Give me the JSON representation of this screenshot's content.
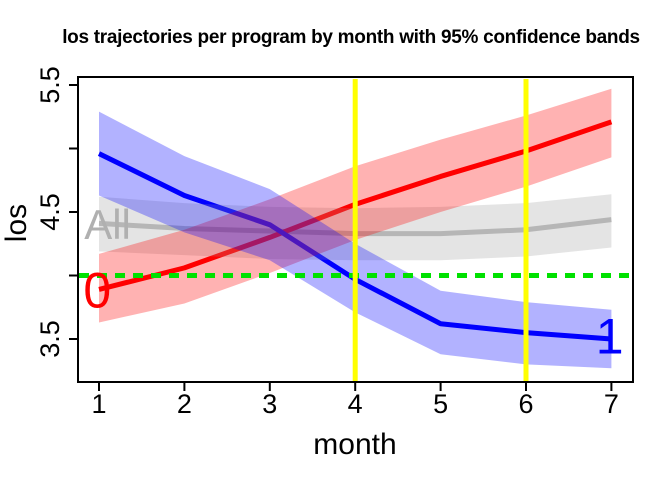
{
  "title": "los trajectories per program by month with 95% confidence bands",
  "chart_data": {
    "type": "line",
    "title": "los trajectories per program by month with 95% confidence bands",
    "xlabel": "month",
    "ylabel": "los",
    "x": [
      1,
      2,
      3,
      4,
      5,
      6,
      7
    ],
    "xlim": [
      0.76,
      7.25
    ],
    "ylim": [
      3.16,
      5.56
    ],
    "xticks": [
      {
        "value": 1,
        "label": "1"
      },
      {
        "value": 2,
        "label": "2"
      },
      {
        "value": 3,
        "label": "3"
      },
      {
        "value": 4,
        "label": "4"
      },
      {
        "value": 5,
        "label": "5"
      },
      {
        "value": 6,
        "label": "6"
      },
      {
        "value": 7,
        "label": "7"
      }
    ],
    "yticks": [
      {
        "value": 3.5,
        "label": "3.5"
      },
      {
        "value": 4.0,
        "label": ""
      },
      {
        "value": 4.5,
        "label": "4.5"
      },
      {
        "value": 5.0,
        "label": ""
      },
      {
        "value": 5.5,
        "label": "5.5"
      }
    ],
    "grid": false,
    "legend": "none",
    "series": [
      {
        "name": "program-0",
        "label": "0",
        "color": "#FF0000",
        "band_color": "rgba(255,0,0,0.30)",
        "values": [
          3.89,
          4.06,
          4.3,
          4.56,
          4.78,
          4.98,
          5.21
        ],
        "upper": [
          4.17,
          4.36,
          4.6,
          4.86,
          5.07,
          5.26,
          5.47
        ],
        "lower": [
          3.63,
          3.78,
          4.02,
          4.28,
          4.5,
          4.7,
          4.93
        ],
        "label_at": {
          "x": 0.98,
          "y": 3.88
        }
      },
      {
        "name": "program-1",
        "label": "1",
        "color": "#0000FF",
        "band_color": "rgba(0,0,255,0.30)",
        "values": [
          4.96,
          4.63,
          4.4,
          3.97,
          3.62,
          3.55,
          3.5
        ],
        "upper": [
          5.29,
          4.94,
          4.68,
          4.25,
          3.88,
          3.79,
          3.73
        ],
        "lower": [
          4.63,
          4.34,
          4.12,
          3.71,
          3.38,
          3.3,
          3.27
        ],
        "label_at": {
          "x": 6.98,
          "y": 3.52
        }
      },
      {
        "name": "all-programs",
        "label": "All",
        "color": "#BEBEBE",
        "label_color": "#B0B0B0",
        "band_color": "rgba(165,165,165,0.30)",
        "values": [
          4.41,
          4.37,
          4.35,
          4.33,
          4.33,
          4.36,
          4.44
        ],
        "upper": [
          4.62,
          4.57,
          4.54,
          4.53,
          4.54,
          4.57,
          4.64
        ],
        "lower": [
          4.19,
          4.16,
          4.13,
          4.12,
          4.12,
          4.15,
          4.22
        ],
        "label_at": {
          "x": 1.1,
          "y": 4.4
        }
      }
    ],
    "reference_lines": {
      "horizontal": [
        {
          "y": 4.0,
          "color": "#00E100",
          "style": "dashed",
          "name": "green-dashed-reference"
        }
      ],
      "vertical": [
        {
          "x": 4,
          "color": "#FFFF00",
          "style": "solid",
          "name": "yellow-marker-month-4"
        },
        {
          "x": 6,
          "color": "#FFFF00",
          "style": "solid",
          "name": "yellow-marker-month-6"
        }
      ]
    },
    "colors": {
      "axis": "#000000",
      "background": "#FFFFFF"
    }
  }
}
